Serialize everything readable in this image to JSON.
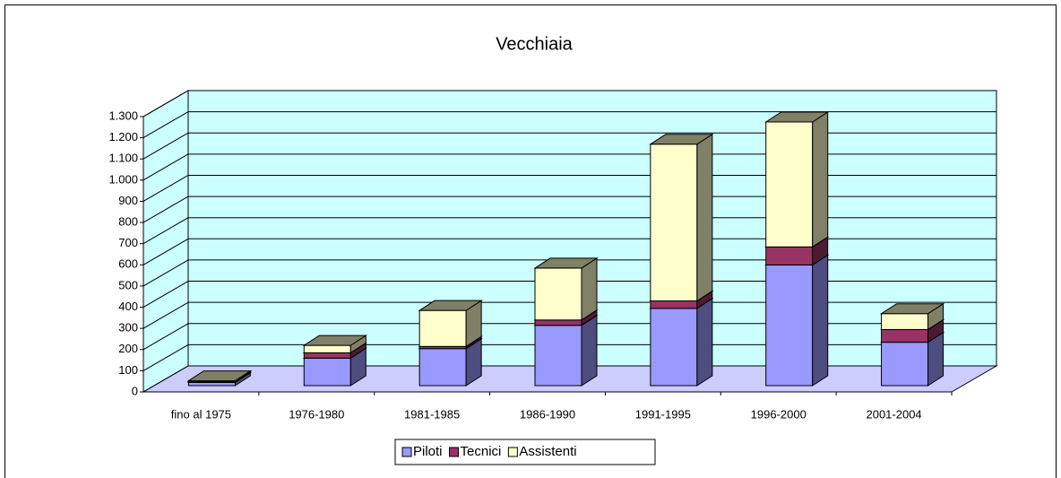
{
  "chart_data": {
    "type": "bar3d-stacked",
    "title": "Vecchiaia",
    "categories": [
      "fino al 1975",
      "1976-1980",
      "1981-1985",
      "1986-1990",
      "1991-1995",
      "1996-2000",
      "2001-2004"
    ],
    "series": [
      {
        "name": "Piloti",
        "color": "#9999ff",
        "values": [
          15,
          130,
          175,
          285,
          365,
          570,
          205
        ]
      },
      {
        "name": "Tecnici",
        "color": "#993366",
        "values": [
          5,
          25,
          10,
          25,
          35,
          85,
          60
        ]
      },
      {
        "name": "Assistenti",
        "color": "#ffffcc",
        "values": [
          3,
          35,
          170,
          245,
          740,
          590,
          75
        ]
      }
    ],
    "ylim": [
      0,
      1300
    ],
    "yticks": [
      0,
      100,
      200,
      300,
      400,
      500,
      600,
      700,
      800,
      900,
      {
        "value": 1000,
        "label": "1.000"
      },
      {
        "value": 1100,
        "label": "1.100"
      },
      {
        "value": 1200,
        "label": "1.200"
      },
      {
        "value": 1300,
        "label": "1.300"
      }
    ],
    "grid": true,
    "legend": "bottom"
  }
}
